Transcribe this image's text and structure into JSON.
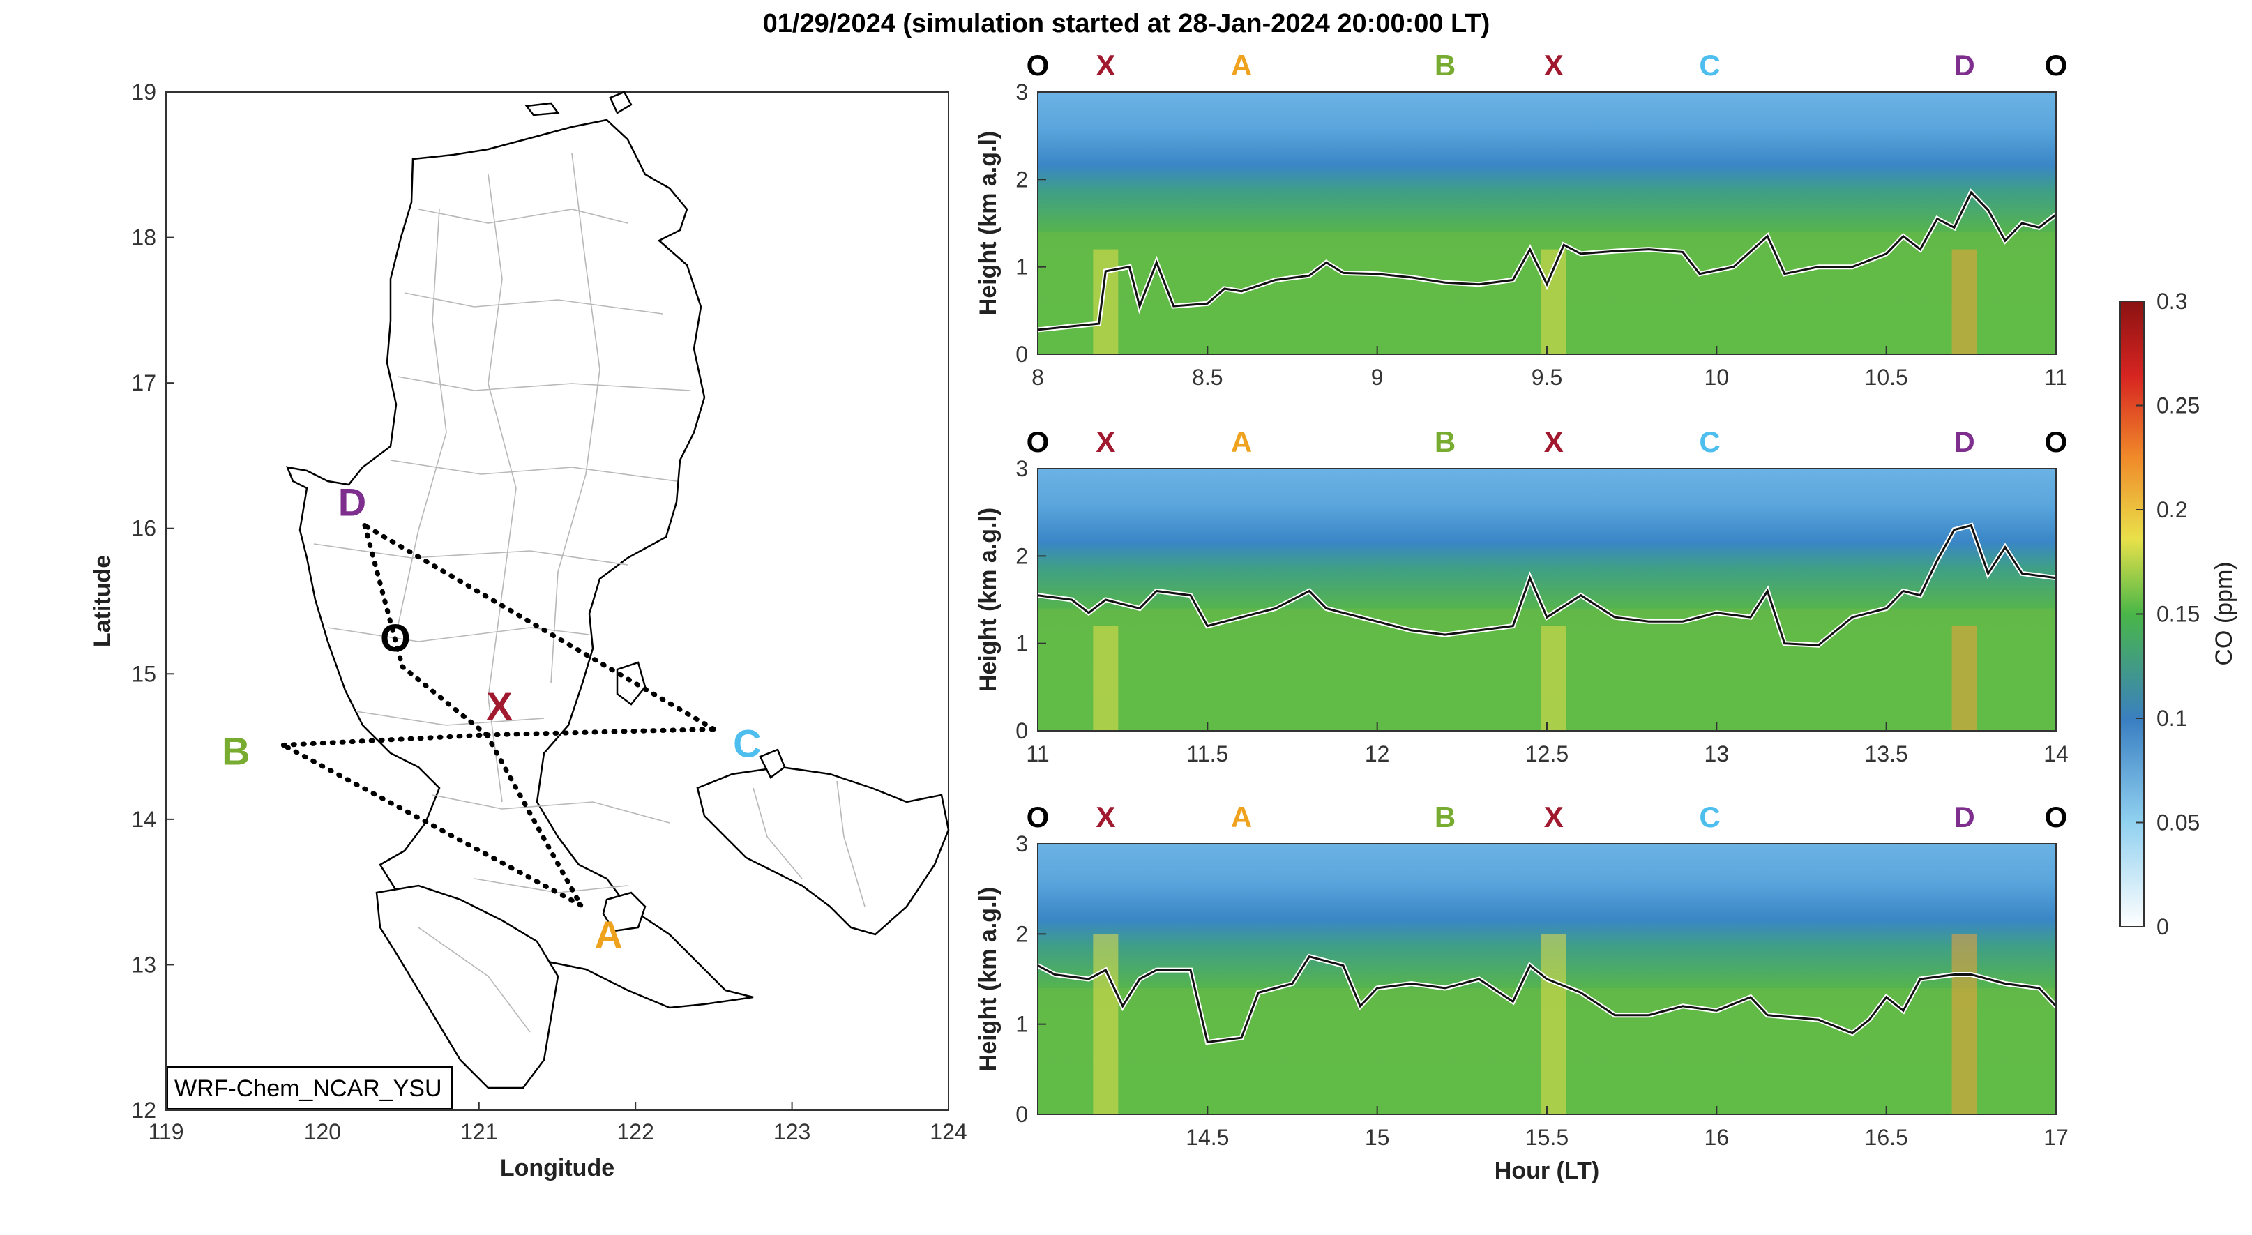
{
  "title": "01/29/2024 (simulation started at 28-Jan-2024 20:00:00 LT)",
  "colors": {
    "O": "#000000",
    "X": "#a0192f",
    "A": "#eea21e",
    "B": "#77ac30",
    "C": "#4dbeee",
    "D": "#7e2f8e"
  },
  "map": {
    "xlabel": "Longitude",
    "ylabel": "Latitude",
    "xlim": [
      119,
      124
    ],
    "ylim": [
      12,
      19
    ],
    "xticks": [
      "119",
      "120",
      "121",
      "122",
      "123",
      "124"
    ],
    "yticks": [
      "12",
      "13",
      "14",
      "15",
      "16",
      "17",
      "18",
      "19"
    ],
    "model_label": "WRF-Chem_NCAR_YSU",
    "points": [
      {
        "label": "O",
        "lon": 120.51,
        "lat": 15.05
      },
      {
        "label": "X",
        "lon": 121.05,
        "lat": 14.58
      },
      {
        "label": "A",
        "lon": 121.65,
        "lat": 13.41
      },
      {
        "label": "B",
        "lon": 119.75,
        "lat": 14.51
      },
      {
        "label": "C",
        "lon": 122.5,
        "lat": 14.62
      },
      {
        "label": "D",
        "lon": 120.27,
        "lat": 16.02
      }
    ],
    "route": [
      "O",
      "X",
      "A",
      "B",
      "X",
      "C",
      "D",
      "O"
    ]
  },
  "chart_data": [
    {
      "type": "heatmap",
      "ylabel": "Height (km a.g.l)",
      "xlabel": "",
      "xlim": [
        8,
        11
      ],
      "ylim": [
        0,
        3
      ],
      "xticks": [
        "8",
        "8.5",
        "9",
        "9.5",
        "10",
        "10.5",
        "11"
      ],
      "yticks": [
        "0",
        "1",
        "2",
        "3"
      ],
      "waypoints": [
        {
          "label": "O",
          "x": 8.0
        },
        {
          "label": "X",
          "x": 8.2
        },
        {
          "label": "A",
          "x": 8.6
        },
        {
          "label": "B",
          "x": 9.2
        },
        {
          "label": "X",
          "x": 9.52
        },
        {
          "label": "C",
          "x": 9.98
        },
        {
          "label": "D",
          "x": 10.73
        },
        {
          "label": "O",
          "x": 11.0
        }
      ],
      "pbl_height_km": [
        [
          8.0,
          0.28
        ],
        [
          8.1,
          0.32
        ],
        [
          8.18,
          0.35
        ],
        [
          8.2,
          0.95
        ],
        [
          8.27,
          1.0
        ],
        [
          8.3,
          0.55
        ],
        [
          8.35,
          1.05
        ],
        [
          8.4,
          0.55
        ],
        [
          8.5,
          0.58
        ],
        [
          8.55,
          0.75
        ],
        [
          8.6,
          0.72
        ],
        [
          8.7,
          0.85
        ],
        [
          8.8,
          0.9
        ],
        [
          8.85,
          1.05
        ],
        [
          8.9,
          0.93
        ],
        [
          9.0,
          0.92
        ],
        [
          9.1,
          0.88
        ],
        [
          9.2,
          0.82
        ],
        [
          9.3,
          0.8
        ],
        [
          9.4,
          0.85
        ],
        [
          9.45,
          1.2
        ],
        [
          9.5,
          0.8
        ],
        [
          9.55,
          1.25
        ],
        [
          9.6,
          1.15
        ],
        [
          9.7,
          1.18
        ],
        [
          9.8,
          1.2
        ],
        [
          9.9,
          1.17
        ],
        [
          9.95,
          0.92
        ],
        [
          10.05,
          1.0
        ],
        [
          10.15,
          1.35
        ],
        [
          10.2,
          0.92
        ],
        [
          10.3,
          1.0
        ],
        [
          10.4,
          1.0
        ],
        [
          10.5,
          1.15
        ],
        [
          10.55,
          1.35
        ],
        [
          10.6,
          1.2
        ],
        [
          10.65,
          1.55
        ],
        [
          10.7,
          1.45
        ],
        [
          10.75,
          1.85
        ],
        [
          10.8,
          1.65
        ],
        [
          10.85,
          1.3
        ],
        [
          10.9,
          1.5
        ],
        [
          10.95,
          1.45
        ],
        [
          11.0,
          1.6
        ]
      ]
    },
    {
      "type": "heatmap",
      "ylabel": "Height (km a.g.l)",
      "xlabel": "",
      "xlim": [
        11,
        14
      ],
      "ylim": [
        0,
        3
      ],
      "xticks": [
        "11",
        "11.5",
        "12",
        "12.5",
        "13",
        "13.5",
        "14"
      ],
      "yticks": [
        "0",
        "1",
        "2",
        "3"
      ],
      "waypoints": [
        {
          "label": "O",
          "x": 11.0
        },
        {
          "label": "X",
          "x": 11.2
        },
        {
          "label": "A",
          "x": 11.6
        },
        {
          "label": "B",
          "x": 12.2
        },
        {
          "label": "X",
          "x": 12.52
        },
        {
          "label": "C",
          "x": 12.98
        },
        {
          "label": "D",
          "x": 13.73
        },
        {
          "label": "O",
          "x": 14.0
        }
      ],
      "pbl_height_km": [
        [
          11.0,
          1.55
        ],
        [
          11.1,
          1.5
        ],
        [
          11.15,
          1.35
        ],
        [
          11.2,
          1.5
        ],
        [
          11.3,
          1.4
        ],
        [
          11.35,
          1.6
        ],
        [
          11.45,
          1.55
        ],
        [
          11.5,
          1.2
        ],
        [
          11.6,
          1.3
        ],
        [
          11.7,
          1.4
        ],
        [
          11.8,
          1.6
        ],
        [
          11.85,
          1.4
        ],
        [
          11.9,
          1.35
        ],
        [
          12.0,
          1.25
        ],
        [
          12.1,
          1.15
        ],
        [
          12.2,
          1.1
        ],
        [
          12.3,
          1.15
        ],
        [
          12.4,
          1.2
        ],
        [
          12.45,
          1.75
        ],
        [
          12.5,
          1.3
        ],
        [
          12.6,
          1.55
        ],
        [
          12.7,
          1.3
        ],
        [
          12.8,
          1.25
        ],
        [
          12.9,
          1.25
        ],
        [
          13.0,
          1.35
        ],
        [
          13.1,
          1.3
        ],
        [
          13.15,
          1.6
        ],
        [
          13.2,
          1.0
        ],
        [
          13.3,
          0.98
        ],
        [
          13.4,
          1.3
        ],
        [
          13.5,
          1.4
        ],
        [
          13.55,
          1.6
        ],
        [
          13.6,
          1.55
        ],
        [
          13.65,
          1.95
        ],
        [
          13.7,
          2.3
        ],
        [
          13.75,
          2.35
        ],
        [
          13.8,
          1.8
        ],
        [
          13.85,
          2.1
        ],
        [
          13.9,
          1.8
        ],
        [
          14.0,
          1.75
        ]
      ]
    },
    {
      "type": "heatmap",
      "ylabel": "Height (km a.g.l)",
      "xlabel": "Hour (LT)",
      "xlim": [
        14,
        17
      ],
      "ylim": [
        0,
        3
      ],
      "xticks": [
        "14.5",
        "15",
        "15.5",
        "16",
        "16.5",
        "17"
      ],
      "yticks": [
        "0",
        "1",
        "2",
        "3"
      ],
      "waypoints": [
        {
          "label": "O",
          "x": 14.0
        },
        {
          "label": "X",
          "x": 14.2
        },
        {
          "label": "A",
          "x": 14.6
        },
        {
          "label": "B",
          "x": 15.2
        },
        {
          "label": "X",
          "x": 15.52
        },
        {
          "label": "C",
          "x": 15.98
        },
        {
          "label": "D",
          "x": 16.73
        },
        {
          "label": "O",
          "x": 17.0
        }
      ],
      "pbl_height_km": [
        [
          14.0,
          1.65
        ],
        [
          14.05,
          1.55
        ],
        [
          14.15,
          1.5
        ],
        [
          14.2,
          1.6
        ],
        [
          14.25,
          1.2
        ],
        [
          14.3,
          1.5
        ],
        [
          14.35,
          1.6
        ],
        [
          14.45,
          1.6
        ],
        [
          14.5,
          0.8
        ],
        [
          14.6,
          0.85
        ],
        [
          14.65,
          1.35
        ],
        [
          14.75,
          1.45
        ],
        [
          14.8,
          1.75
        ],
        [
          14.9,
          1.65
        ],
        [
          14.95,
          1.2
        ],
        [
          15.0,
          1.4
        ],
        [
          15.1,
          1.45
        ],
        [
          15.2,
          1.4
        ],
        [
          15.3,
          1.5
        ],
        [
          15.4,
          1.25
        ],
        [
          15.45,
          1.65
        ],
        [
          15.5,
          1.5
        ],
        [
          15.6,
          1.35
        ],
        [
          15.7,
          1.1
        ],
        [
          15.8,
          1.1
        ],
        [
          15.9,
          1.2
        ],
        [
          16.0,
          1.15
        ],
        [
          16.1,
          1.3
        ],
        [
          16.15,
          1.1
        ],
        [
          16.3,
          1.05
        ],
        [
          16.4,
          0.9
        ],
        [
          16.45,
          1.05
        ],
        [
          16.5,
          1.3
        ],
        [
          16.55,
          1.15
        ],
        [
          16.6,
          1.5
        ],
        [
          16.7,
          1.55
        ],
        [
          16.75,
          1.55
        ],
        [
          16.85,
          1.45
        ],
        [
          16.95,
          1.4
        ],
        [
          17.0,
          1.2
        ]
      ]
    }
  ],
  "colorbar": {
    "label": "CO (ppm)",
    "min": 0,
    "max": 0.3,
    "ticks": [
      "0",
      "0.05",
      "0.1",
      "0.15",
      "0.2",
      "0.25",
      "0.3"
    ]
  }
}
